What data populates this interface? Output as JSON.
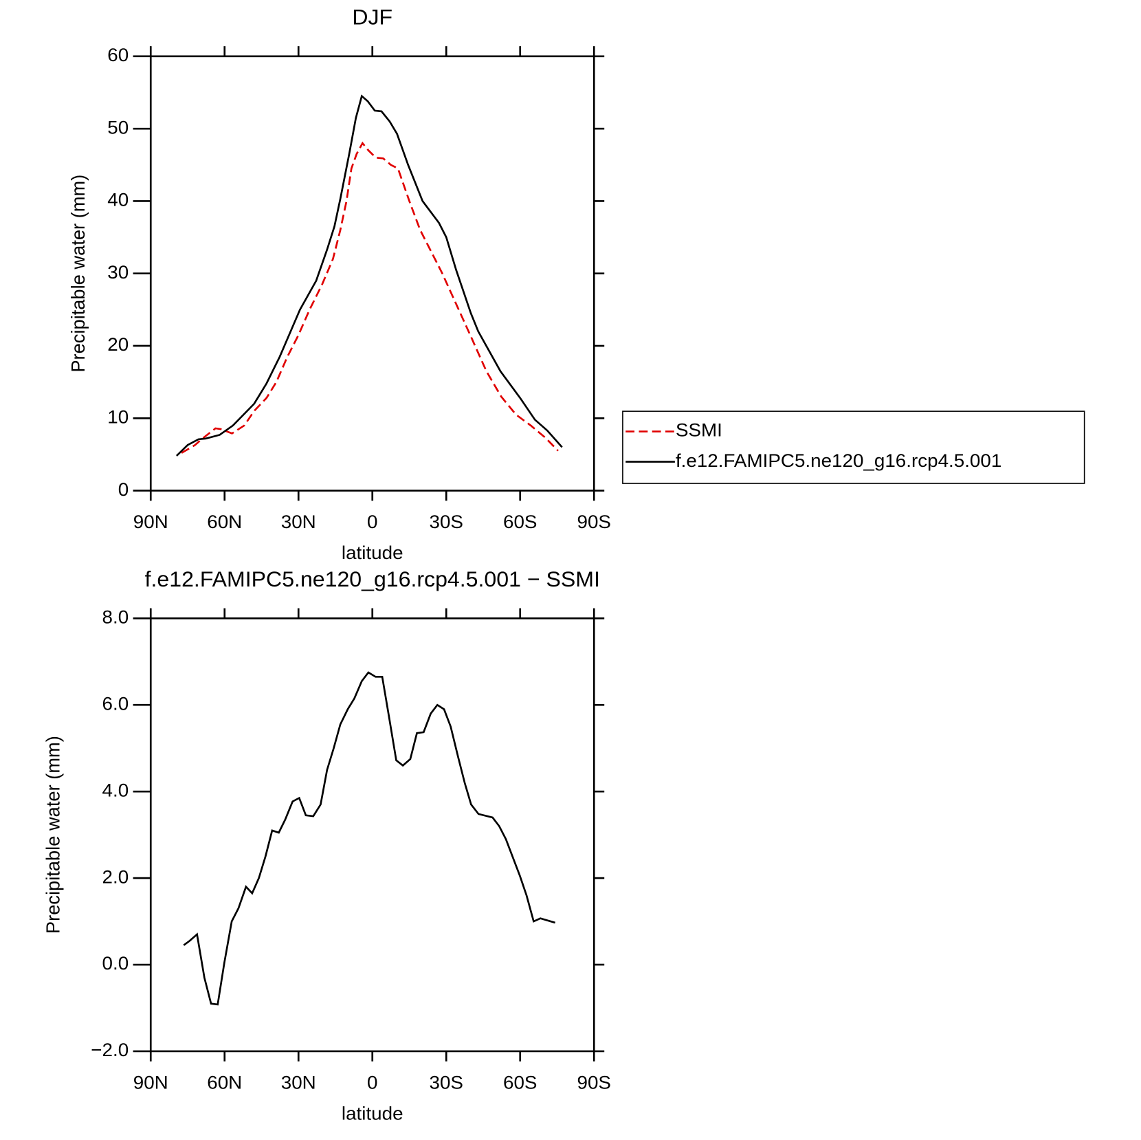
{
  "chart_data": [
    {
      "type": "line",
      "title": "DJF",
      "xlabel": "latitude",
      "ylabel": "Precipitable water (mm)",
      "xlim": [
        90,
        -90
      ],
      "xticks": [
        {
          "value": 90,
          "label": "90N"
        },
        {
          "value": 60,
          "label": "60N"
        },
        {
          "value": 30,
          "label": "30N"
        },
        0,
        {
          "value": -30,
          "label": "30S"
        },
        {
          "value": -60,
          "label": "60S"
        },
        {
          "value": -90,
          "label": "90S"
        }
      ],
      "ylim": [
        0,
        60
      ],
      "yticks": [
        0,
        10,
        20,
        30,
        40,
        50,
        60
      ],
      "legend": "right",
      "series": [
        {
          "name": "SSMI",
          "color": "#e00000",
          "style": "dashed",
          "x": [
            77.5,
            72,
            69,
            63.7,
            61.6,
            57,
            52,
            48,
            43,
            39,
            34.5,
            30,
            25.5,
            20.4,
            16,
            13,
            10.5,
            8.5,
            6.4,
            4,
            1.6,
            -1.4,
            -4.4,
            -7.5,
            -10.4,
            -15,
            -19.4,
            -25.4,
            -28.4,
            -34.4,
            -40.4,
            -46.3,
            -52.3,
            -58.3,
            -64.3,
            -70.3,
            -75.4
          ],
          "values": [
            5.2,
            6.3,
            7.2,
            8.6,
            8.5,
            7.9,
            9.0,
            11,
            12.8,
            15,
            18.5,
            21.5,
            25,
            28.5,
            32,
            36,
            40,
            44.5,
            46.5,
            48,
            47,
            46,
            45.9,
            45,
            44.5,
            40,
            36,
            32,
            30,
            25.5,
            21,
            16.5,
            13,
            10.5,
            9,
            7.3,
            5.5
          ]
        },
        {
          "name": "f.e12.FAMIPC5.ne120_g16.rcp4.5.001",
          "color": "#000000",
          "style": "solid",
          "x": [
            79.5,
            75,
            70.6,
            67.6,
            62,
            56.6,
            48,
            43,
            37.6,
            29.4,
            22.8,
            18.4,
            15.4,
            13,
            9.4,
            6.7,
            4.3,
            1.9,
            -1,
            -3.7,
            -7,
            -10,
            -14.5,
            -20.4,
            -27,
            -30,
            -34,
            -40,
            -43,
            -52,
            -60,
            -66,
            -71,
            -77
          ],
          "values": [
            4.8,
            6.3,
            7.1,
            7.2,
            7.7,
            9,
            12,
            14.8,
            18.5,
            25,
            29,
            33.3,
            36.5,
            40.3,
            46.5,
            51.5,
            54.5,
            53.8,
            52.5,
            52.4,
            51,
            49.3,
            45,
            40,
            37,
            35,
            30.5,
            24.5,
            22,
            16.5,
            12.8,
            9.8,
            8.3,
            6
          ]
        }
      ]
    },
    {
      "type": "line",
      "title": "f.e12.FAMIPC5.ne120_g16.rcp4.5.001 − SSMI",
      "xlabel": "latitude",
      "ylabel": "Precipitable water (mm)",
      "xlim": [
        90,
        -90
      ],
      "xticks": [
        {
          "value": 90,
          "label": "90N"
        },
        {
          "value": 60,
          "label": "60N"
        },
        {
          "value": 30,
          "label": "30N"
        },
        0,
        {
          "value": -30,
          "label": "30S"
        },
        {
          "value": -60,
          "label": "60S"
        },
        {
          "value": -90,
          "label": "90S"
        }
      ],
      "ylim": [
        -2,
        8
      ],
      "yticks": [
        {
          "value": -2,
          "label": "−2.0"
        },
        {
          "value": 0,
          "label": "0.0"
        },
        {
          "value": 2,
          "label": "2.0"
        },
        {
          "value": 4,
          "label": "4.0"
        },
        {
          "value": 6,
          "label": "6.0"
        },
        {
          "value": 8,
          "label": "8.0"
        }
      ],
      "series": [
        {
          "color": "#000000",
          "style": "solid",
          "x": [
            76.6,
            74.2,
            71.2,
            68.2,
            65.5,
            62.8,
            60.1,
            57.1,
            54.4,
            51.3,
            48.8,
            46.1,
            43.4,
            40.7,
            38,
            35.4,
            32.4,
            29.7,
            27,
            24,
            21,
            18.4,
            15.7,
            13,
            10,
            7.3,
            4.3,
            1.6,
            -1.3,
            -4,
            -6.7,
            -9.7,
            -12.4,
            -15.4,
            -18.1,
            -20.8,
            -23.7,
            -26.4,
            -29.1,
            -31.8,
            -34.8,
            -37.5,
            -40.1,
            -43.1,
            -48.8,
            -51.5,
            -54.2,
            -59.9,
            -62.6,
            -65.5,
            -68.2,
            -74.2
          ],
          "values": [
            0.45,
            0.55,
            0.7,
            -0.3,
            -0.9,
            -0.92,
            0.05,
            1.0,
            1.3,
            1.8,
            1.65,
            2.0,
            2.5,
            3.1,
            3.05,
            3.35,
            3.77,
            3.85,
            3.45,
            3.43,
            3.7,
            4.5,
            5.0,
            5.55,
            5.9,
            6.15,
            6.55,
            6.75,
            6.65,
            6.65,
            5.75,
            4.72,
            4.6,
            4.75,
            5.35,
            5.37,
            5.8,
            6.0,
            5.9,
            5.5,
            4.8,
            4.2,
            3.7,
            3.48,
            3.4,
            3.2,
            2.9,
            2.05,
            1.6,
            1.0,
            1.07,
            0.97
          ]
        }
      ]
    }
  ]
}
